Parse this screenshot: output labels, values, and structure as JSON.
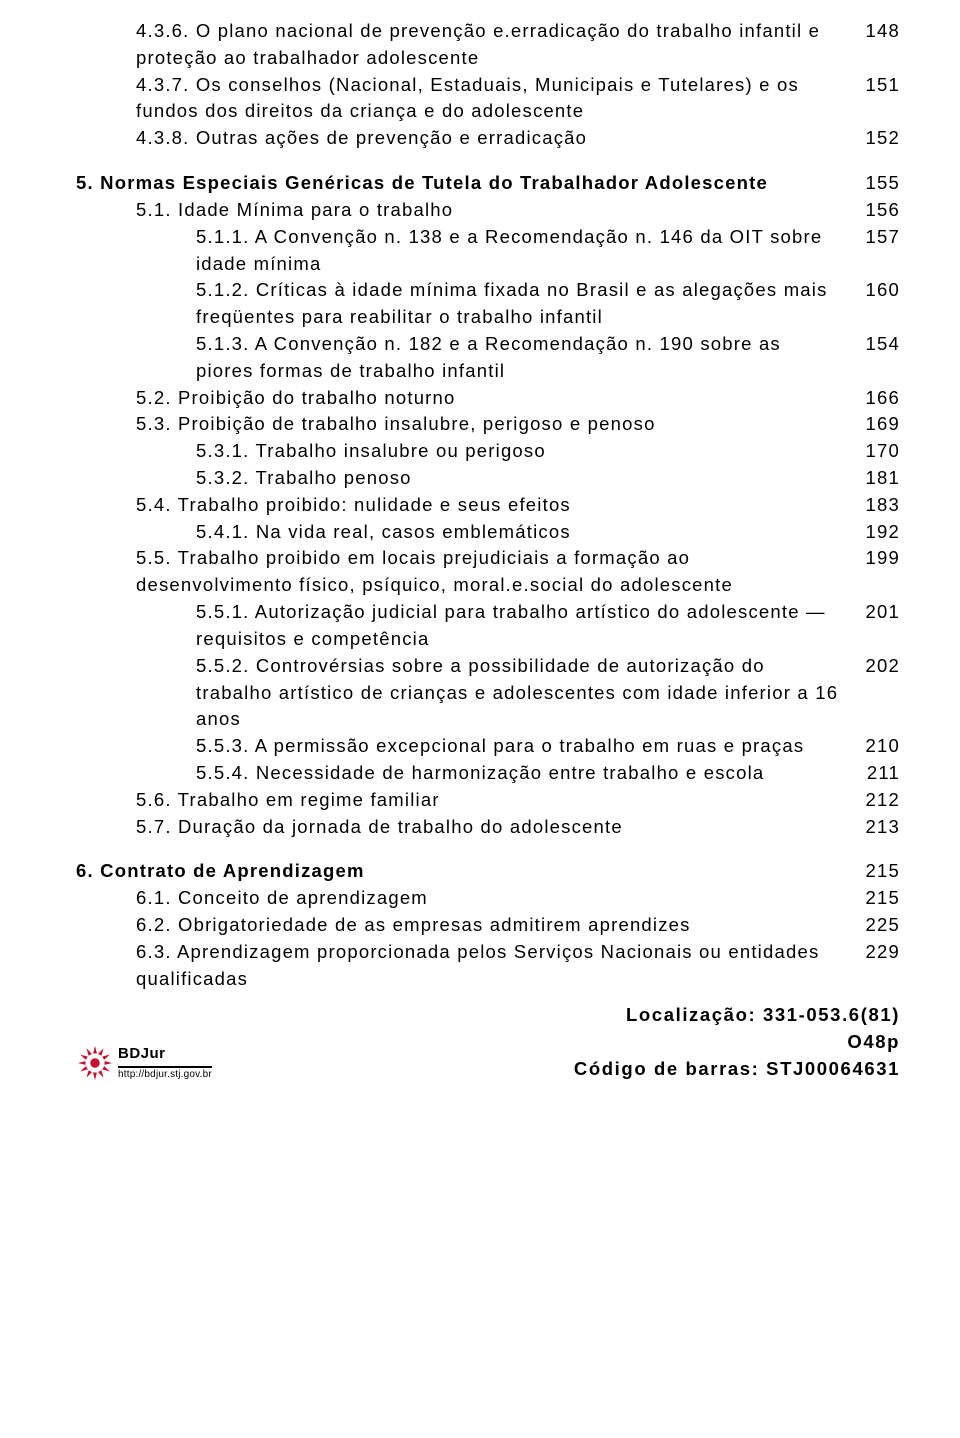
{
  "toc": [
    {
      "indent": 1,
      "txt": "4.3.6. O plano nacional de prevenção e.erradicação do trabalho infantil e proteção ao trabalhador adolescente",
      "pg": "148"
    },
    {
      "indent": 1,
      "txt": "4.3.7. Os conselhos (Nacional, Estaduais, Municipais e Tutelares) e os fundos dos direitos da criança e do adolescente",
      "pg": "151"
    },
    {
      "indent": 1,
      "txt": "4.3.8. Outras ações de prevenção e erradicação",
      "pg": "152"
    },
    {
      "indent": 0,
      "heading": true,
      "txt": "5. Normas Especiais Genéricas de Tutela do Trabalhador Adolescente",
      "pg": "155",
      "spacerBefore": true
    },
    {
      "indent": 1,
      "txt": "5.1. Idade Mínima para o trabalho",
      "pg": "156"
    },
    {
      "indent": 2,
      "txt": "5.1.1. A Convenção n. 138 e a Recomendação n. 146 da OIT sobre idade mínima",
      "pg": "157"
    },
    {
      "indent": 2,
      "txt": "5.1.2. Críticas à idade mínima fixada no Brasil e as alegações mais freqüentes para reabilitar o trabalho infantil",
      "pg": "160"
    },
    {
      "indent": 2,
      "txt": "5.1.3. A Convenção n. 182 e a Recomendação n. 190 sobre as piores formas de trabalho infantil",
      "pg": "154"
    },
    {
      "indent": 1,
      "txt": "5.2. Proibição do trabalho noturno",
      "pg": "166"
    },
    {
      "indent": 1,
      "txt": "5.3. Proibição de trabalho insalubre, perigoso e penoso",
      "pg": "169"
    },
    {
      "indent": 2,
      "txt": "5.3.1. Trabalho insalubre ou perigoso",
      "pg": "170"
    },
    {
      "indent": 2,
      "txt": "5.3.2. Trabalho  penoso",
      "pg": "181"
    },
    {
      "indent": 1,
      "txt": "5.4. Trabalho proibido: nulidade e seus efeitos",
      "pg": "183"
    },
    {
      "indent": 2,
      "txt": "5.4.1. Na vida real, casos emblemáticos",
      "pg": "192"
    },
    {
      "indent": 1,
      "txt": "5.5. Trabalho proibido em locais prejudiciais a formação ao desenvolvimento físico,  psíquico, moral.e.social do adolescente",
      "pg": "199",
      "noIndentExtra": true
    },
    {
      "indent": 2,
      "txt": "5.5.1. Autorização judicial para trabalho artístico do adolescente — requisitos e competência",
      "pg": "201"
    },
    {
      "indent": 2,
      "txt": "5.5.2. Controvérsias sobre a possibilidade de autorização do trabalho artístico de crianças e adolescentes com idade inferior a 16 anos",
      "pg": "202"
    },
    {
      "indent": 2,
      "txt": "5.5.3. A permissão excepcional para o trabalho em ruas e praças",
      "pg": "210"
    },
    {
      "indent": 2,
      "txt": "5.5.4. Necessidade de harmonização entre trabalho e escola",
      "pg": "211"
    },
    {
      "indent": 1,
      "txt": "5.6. Trabalho em regime familiar",
      "pg": "212"
    },
    {
      "indent": 1,
      "txt": "5.7. Duração da jornada de trabalho do adolescente",
      "pg": "213"
    },
    {
      "indent": 0,
      "heading": true,
      "txt": "6. Contrato de Aprendizagem",
      "pg": "215",
      "spacerBefore": true
    },
    {
      "indent": 1,
      "txt": "6.1. Conceito de aprendizagem",
      "pg": "215"
    },
    {
      "indent": 1,
      "txt": "6.2. Obrigatoriedade de as empresas admitirem aprendizes",
      "pg": "225"
    },
    {
      "indent": 1,
      "txt": "6.3. Aprendizagem proporcionada pelos Serviços Nacionais ou entidades qualificadas",
      "pg": "229"
    }
  ],
  "logo": {
    "brand": "BDJur",
    "url": "http://bdjur.stj.gov.br",
    "color": "#c8102e"
  },
  "footer": {
    "line1": "Localização: 331-053.6(81)",
    "line2": "O48p",
    "line3": "Código de barras: STJ00064631"
  }
}
